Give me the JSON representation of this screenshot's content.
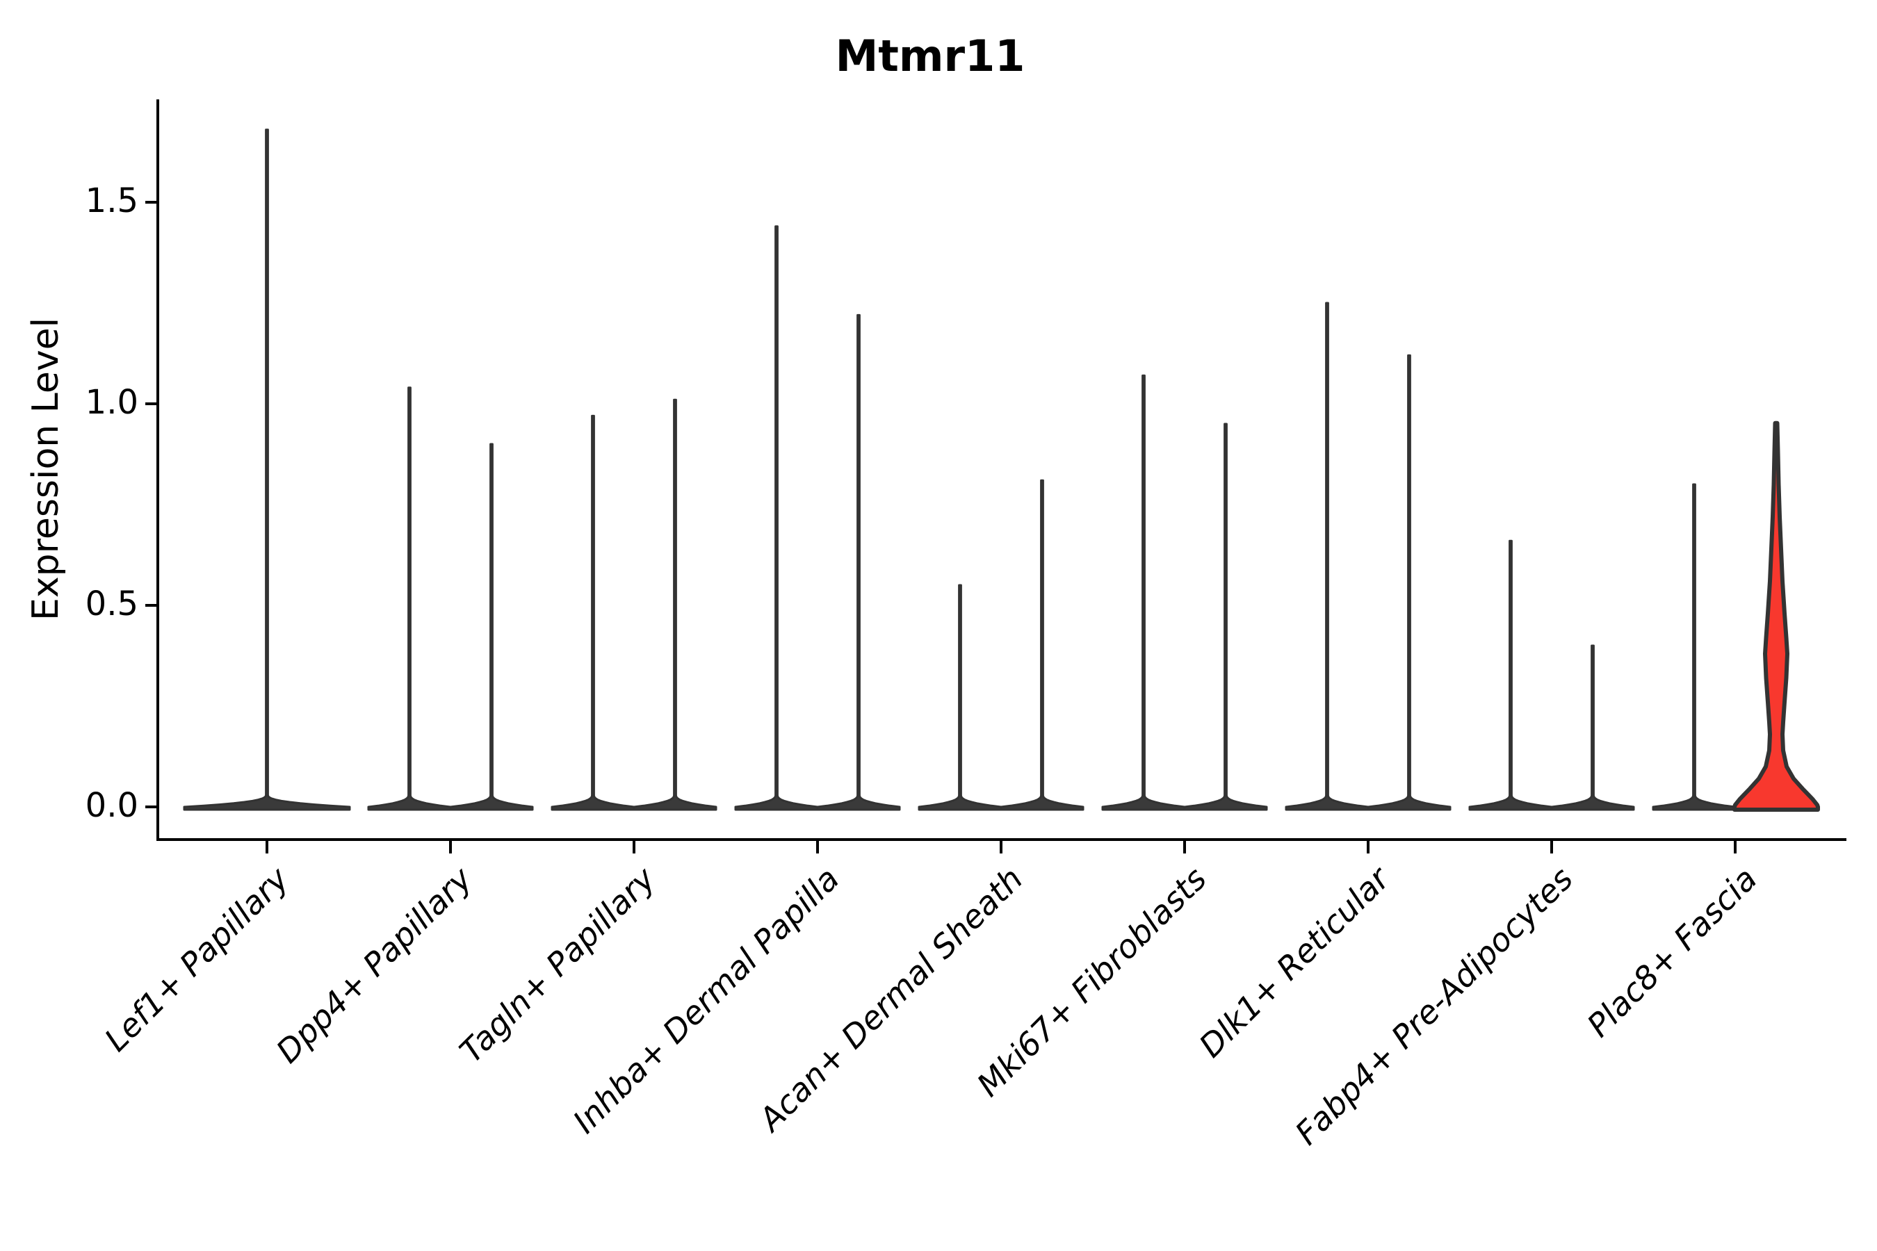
{
  "chart_data": {
    "type": "violin",
    "title": "Mtmr11",
    "ylabel": "Expression Level",
    "xlabel": "",
    "ytick_labels": [
      "0.0",
      "0.5",
      "1.0",
      "1.5"
    ],
    "ytick_values": [
      0.0,
      0.5,
      1.0,
      1.5
    ],
    "ylim": [
      -0.08,
      1.76
    ],
    "x_label_rotation_deg": 45,
    "legend": "none",
    "grid": "off",
    "categories": [
      "Lef1+ Papillary",
      "Dpp4+ Papillary",
      "Tagln+ Papillary",
      "Inhba+ Dermal Papilla",
      "Acan+ Dermal Sheath",
      "Mki67+ Fibroblasts",
      "Dlk1+ Reticular",
      "Fabp4+ Pre-Adipocytes",
      "Plac8+ Fascia"
    ],
    "groups": [
      {
        "category": "Lef1+ Papillary",
        "violins": [
          {
            "position": "center",
            "peak": 1.68,
            "color_key": "default"
          }
        ]
      },
      {
        "category": "Dpp4+ Papillary",
        "violins": [
          {
            "position": "left",
            "peak": 1.04,
            "color_key": "default"
          },
          {
            "position": "right",
            "peak": 0.9,
            "color_key": "default"
          }
        ]
      },
      {
        "category": "Tagln+ Papillary",
        "violins": [
          {
            "position": "left",
            "peak": 0.97,
            "color_key": "default"
          },
          {
            "position": "right",
            "peak": 1.01,
            "color_key": "default"
          }
        ]
      },
      {
        "category": "Inhba+ Dermal Papilla",
        "violins": [
          {
            "position": "left",
            "peak": 1.44,
            "color_key": "default"
          },
          {
            "position": "right",
            "peak": 1.22,
            "color_key": "default"
          }
        ]
      },
      {
        "category": "Acan+ Dermal Sheath",
        "violins": [
          {
            "position": "left",
            "peak": 0.55,
            "color_key": "default"
          },
          {
            "position": "right",
            "peak": 0.81,
            "color_key": "default"
          }
        ]
      },
      {
        "category": "Mki67+ Fibroblasts",
        "violins": [
          {
            "position": "left",
            "peak": 1.07,
            "color_key": "default"
          },
          {
            "position": "right",
            "peak": 0.95,
            "color_key": "default"
          }
        ]
      },
      {
        "category": "Dlk1+ Reticular",
        "violins": [
          {
            "position": "left",
            "peak": 1.25,
            "color_key": "default"
          },
          {
            "position": "right",
            "peak": 1.12,
            "color_key": "default"
          }
        ]
      },
      {
        "category": "Fabp4+ Pre-Adipocytes",
        "violins": [
          {
            "position": "left",
            "peak": 0.66,
            "color_key": "default"
          },
          {
            "position": "right",
            "peak": 0.4,
            "color_key": "default"
          }
        ]
      },
      {
        "category": "Plac8+ Fascia",
        "violins": [
          {
            "position": "left",
            "peak": 0.8,
            "color_key": "default"
          },
          {
            "position": "right",
            "peak": 0.95,
            "color_key": "highlight",
            "shaped": true
          }
        ]
      }
    ],
    "highlight_profile": [
      [
        0.952,
        1.5
      ],
      [
        0.88,
        2.5
      ],
      [
        0.8,
        3.5
      ],
      [
        0.72,
        5
      ],
      [
        0.64,
        7
      ],
      [
        0.56,
        9
      ],
      [
        0.48,
        12
      ],
      [
        0.42,
        14.5
      ],
      [
        0.38,
        16
      ],
      [
        0.32,
        14.5
      ],
      [
        0.26,
        12
      ],
      [
        0.21,
        10
      ],
      [
        0.18,
        9
      ],
      [
        0.14,
        10
      ],
      [
        0.1,
        15
      ],
      [
        0.07,
        25
      ],
      [
        0.045,
        38
      ],
      [
        0.02,
        52
      ],
      [
        0.005,
        59
      ],
      [
        0.0,
        60
      ]
    ],
    "colors": {
      "violin_fill": "#3A3A3A",
      "violin_outline": "#333333",
      "highlight_fill": "#F8382E",
      "axis": "#000000",
      "text": "#000000",
      "background": "#FFFFFF"
    }
  }
}
